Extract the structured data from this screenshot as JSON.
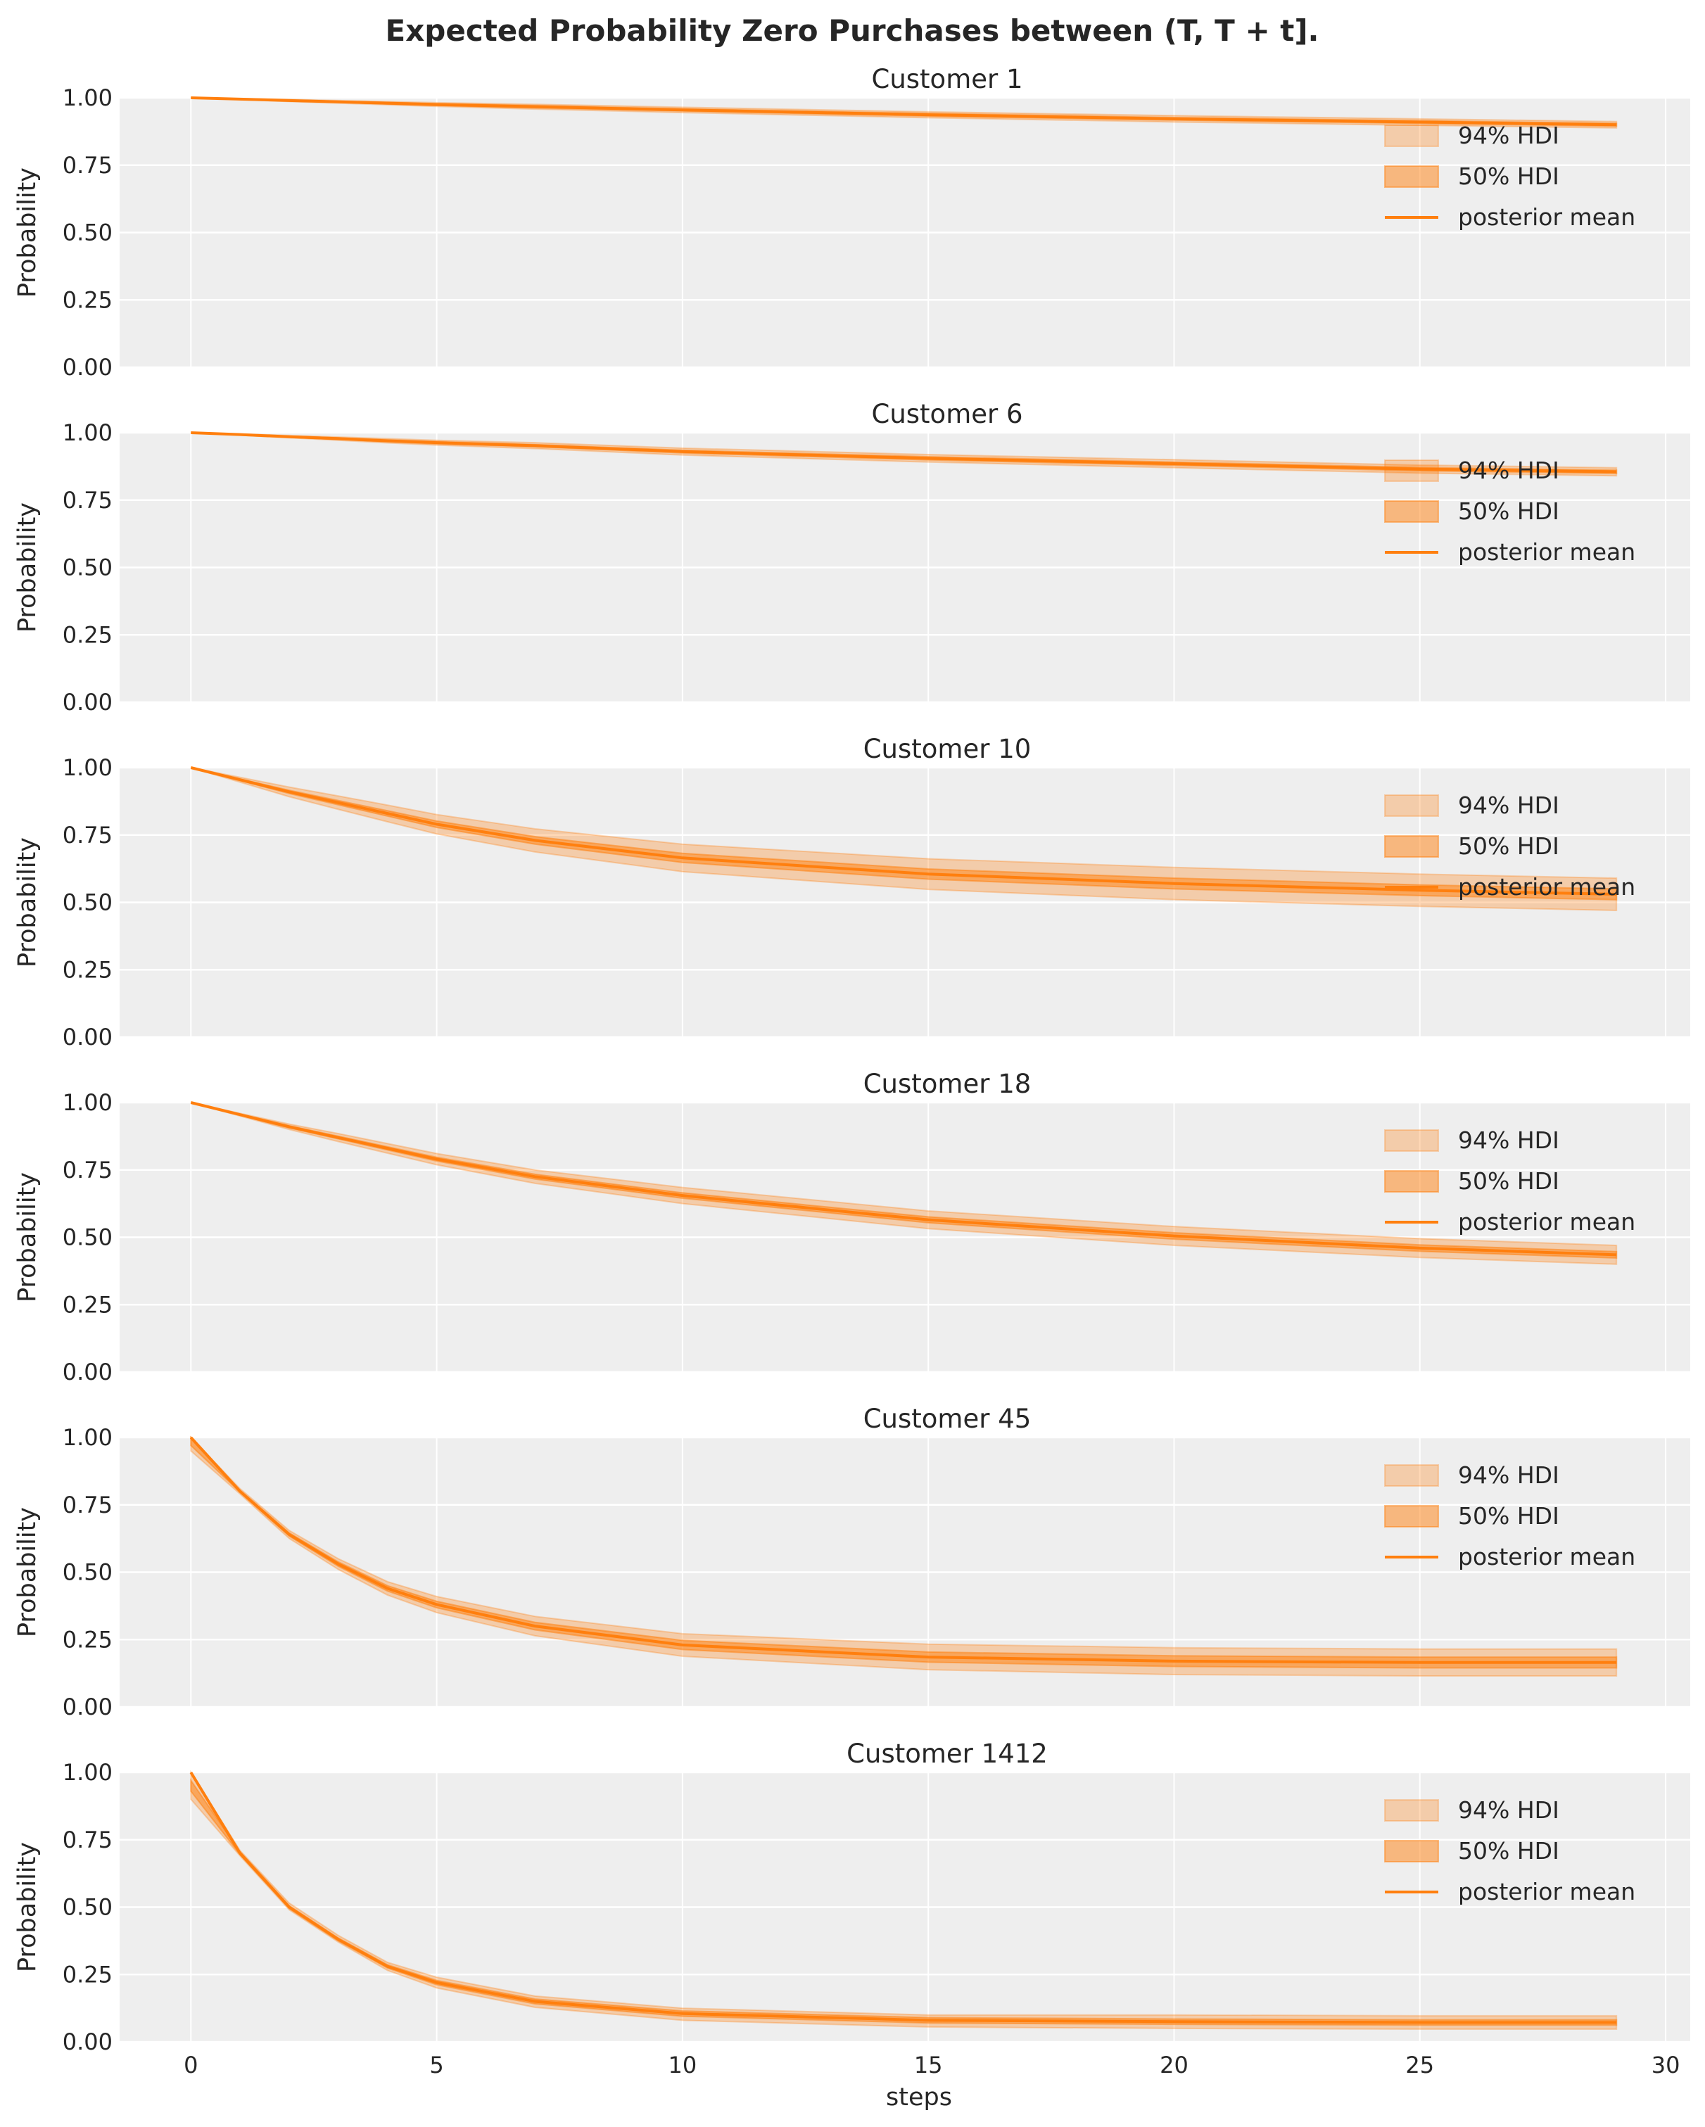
{
  "title": "Expected Probability Zero Purchases between (T, T + t].",
  "colors": {
    "background": "#eeeeee",
    "grid": "#ffffff",
    "series": "#ff7f0e"
  },
  "chart_data": {
    "type": "line",
    "layout": "6 stacked panels, shared x axis",
    "xlabel": "steps",
    "ylabel": "Probability",
    "xticks": [
      0,
      5,
      10,
      15,
      20,
      25,
      30
    ],
    "yticks": [
      "0.00",
      "0.25",
      "0.50",
      "0.75",
      "1.00"
    ],
    "xlim": [
      -1.45,
      30.5
    ],
    "ylim": [
      0,
      1
    ],
    "grid": true,
    "legend_placement": "right",
    "legend": [
      "94% HDI",
      "50% HDI",
      "posterior mean"
    ],
    "x": [
      0,
      1,
      2,
      3,
      4,
      5,
      7,
      10,
      15,
      20,
      25,
      29
    ],
    "panels": [
      {
        "title": "Customer 1",
        "mean": [
          1,
          0.995,
          0.99,
          0.985,
          0.98,
          0.975,
          0.967,
          0.955,
          0.937,
          0.922,
          0.91,
          0.9
        ],
        "hdi94_lower": [
          1,
          0.993,
          0.986,
          0.98,
          0.974,
          0.968,
          0.958,
          0.945,
          0.926,
          0.91,
          0.898,
          0.888
        ],
        "hdi94_upper": [
          1,
          0.997,
          0.994,
          0.99,
          0.986,
          0.982,
          0.976,
          0.965,
          0.948,
          0.934,
          0.922,
          0.912
        ],
        "hdi50_lower": [
          1,
          0.994,
          0.988,
          0.983,
          0.977,
          0.972,
          0.963,
          0.951,
          0.932,
          0.917,
          0.905,
          0.895
        ],
        "hdi50_upper": [
          1,
          0.996,
          0.992,
          0.987,
          0.983,
          0.978,
          0.971,
          0.959,
          0.942,
          0.927,
          0.915,
          0.905
        ]
      },
      {
        "title": "Customer 6",
        "mean": [
          1,
          0.993,
          0.985,
          0.978,
          0.97,
          0.963,
          0.952,
          0.93,
          0.905,
          0.885,
          0.865,
          0.855
        ],
        "hdi94_lower": [
          1,
          0.991,
          0.981,
          0.972,
          0.962,
          0.954,
          0.941,
          0.917,
          0.891,
          0.87,
          0.85,
          0.84
        ],
        "hdi94_upper": [
          1,
          0.995,
          0.99,
          0.984,
          0.978,
          0.972,
          0.963,
          0.943,
          0.919,
          0.9,
          0.88,
          0.87
        ],
        "hdi50_lower": [
          1,
          0.992,
          0.983,
          0.975,
          0.967,
          0.959,
          0.948,
          0.925,
          0.899,
          0.879,
          0.859,
          0.849
        ],
        "hdi50_upper": [
          1,
          0.994,
          0.987,
          0.981,
          0.973,
          0.967,
          0.956,
          0.935,
          0.911,
          0.891,
          0.871,
          0.861
        ]
      },
      {
        "title": "Customer 10",
        "mean": [
          1,
          0.955,
          0.91,
          0.87,
          0.83,
          0.79,
          0.73,
          0.665,
          0.605,
          0.57,
          0.545,
          0.53
        ],
        "hdi94_lower": [
          1,
          0.946,
          0.892,
          0.845,
          0.799,
          0.754,
          0.687,
          0.614,
          0.548,
          0.51,
          0.485,
          0.47
        ],
        "hdi94_upper": [
          1,
          0.964,
          0.928,
          0.895,
          0.861,
          0.826,
          0.773,
          0.716,
          0.662,
          0.63,
          0.605,
          0.59
        ],
        "hdi50_lower": [
          1,
          0.952,
          0.904,
          0.862,
          0.82,
          0.778,
          0.716,
          0.648,
          0.586,
          0.55,
          0.525,
          0.51
        ],
        "hdi50_upper": [
          1,
          0.958,
          0.916,
          0.878,
          0.84,
          0.802,
          0.744,
          0.682,
          0.624,
          0.59,
          0.565,
          0.55
        ]
      },
      {
        "title": "Customer 18",
        "mean": [
          1,
          0.955,
          0.91,
          0.87,
          0.83,
          0.79,
          0.725,
          0.655,
          0.565,
          0.505,
          0.46,
          0.435
        ],
        "hdi94_lower": [
          1,
          0.95,
          0.9,
          0.855,
          0.812,
          0.769,
          0.7,
          0.625,
          0.532,
          0.47,
          0.425,
          0.4
        ],
        "hdi94_upper": [
          1,
          0.96,
          0.92,
          0.885,
          0.848,
          0.811,
          0.75,
          0.685,
          0.598,
          0.54,
          0.495,
          0.47
        ],
        "hdi50_lower": [
          1,
          0.953,
          0.906,
          0.865,
          0.824,
          0.783,
          0.716,
          0.645,
          0.554,
          0.493,
          0.448,
          0.423
        ],
        "hdi50_upper": [
          1,
          0.957,
          0.914,
          0.875,
          0.836,
          0.797,
          0.734,
          0.665,
          0.576,
          0.517,
          0.472,
          0.447
        ]
      },
      {
        "title": "Customer 45",
        "mean": [
          1,
          0.8,
          0.64,
          0.53,
          0.44,
          0.38,
          0.3,
          0.23,
          0.185,
          0.17,
          0.165,
          0.165
        ],
        "hdi94_lower": [
          0.95,
          0.79,
          0.625,
          0.51,
          0.415,
          0.35,
          0.264,
          0.188,
          0.138,
          0.12,
          0.115,
          0.115
        ],
        "hdi94_upper": [
          1,
          0.81,
          0.655,
          0.55,
          0.465,
          0.41,
          0.336,
          0.272,
          0.233,
          0.22,
          0.215,
          0.215
        ],
        "hdi50_lower": [
          0.97,
          0.797,
          0.634,
          0.522,
          0.43,
          0.368,
          0.286,
          0.213,
          0.166,
          0.15,
          0.145,
          0.145
        ],
        "hdi50_upper": [
          1,
          0.803,
          0.646,
          0.538,
          0.45,
          0.392,
          0.314,
          0.247,
          0.204,
          0.19,
          0.185,
          0.185
        ]
      },
      {
        "title": "Customer 1412",
        "mean": [
          1,
          0.7,
          0.5,
          0.38,
          0.28,
          0.22,
          0.15,
          0.105,
          0.08,
          0.075,
          0.072,
          0.072
        ],
        "hdi94_lower": [
          0.9,
          0.69,
          0.49,
          0.37,
          0.265,
          0.2,
          0.128,
          0.08,
          0.055,
          0.05,
          0.047,
          0.047
        ],
        "hdi94_upper": [
          1,
          0.71,
          0.515,
          0.395,
          0.295,
          0.24,
          0.17,
          0.125,
          0.1,
          0.1,
          0.097,
          0.097
        ],
        "hdi50_lower": [
          0.93,
          0.695,
          0.495,
          0.375,
          0.274,
          0.212,
          0.141,
          0.095,
          0.07,
          0.065,
          0.062,
          0.062
        ],
        "hdi50_upper": [
          0.97,
          0.705,
          0.505,
          0.385,
          0.286,
          0.228,
          0.159,
          0.115,
          0.09,
          0.085,
          0.082,
          0.082
        ]
      }
    ]
  }
}
